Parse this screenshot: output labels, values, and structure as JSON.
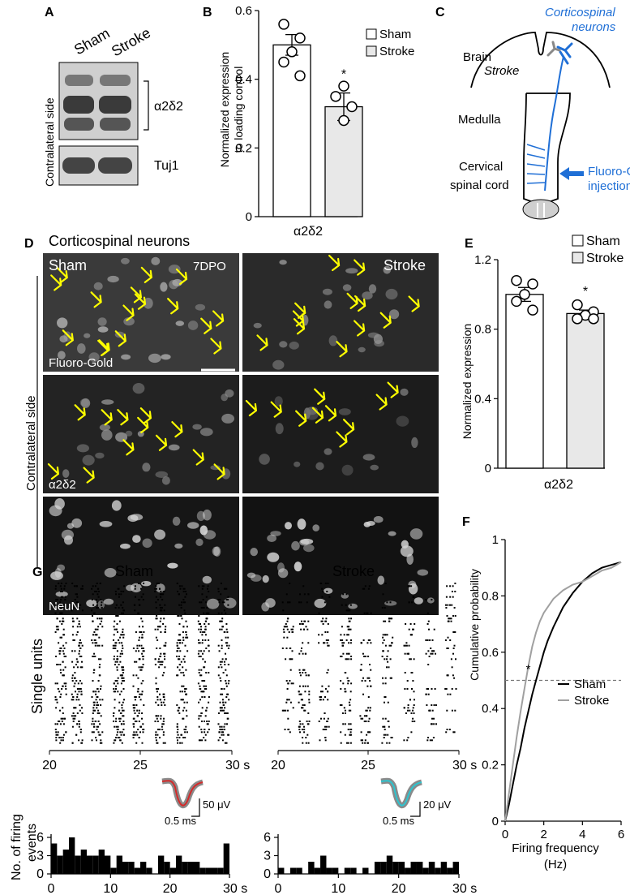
{
  "panels": {
    "A": "A",
    "B": "B",
    "C": "C",
    "D": "D",
    "E": "E",
    "F": "F",
    "G": "G"
  },
  "panelA": {
    "lanes": [
      "Sham",
      "Stroke"
    ],
    "side_label": "Contralateral side",
    "bands": [
      "α2δ2",
      "Tuj1"
    ]
  },
  "panelB": {
    "ylabel_line1": "Normalized expression",
    "ylabel_line2": "to loading control",
    "xlabel": "α2δ2",
    "yticks": [
      "0",
      "0.2",
      "0.4",
      "0.6"
    ],
    "legend": [
      "Sham",
      "Stroke"
    ],
    "sig": "*"
  },
  "panelC": {
    "title_line1": "Corticospinal",
    "title_line2": "neurons",
    "brain": "Brain",
    "stroke": "Stroke",
    "medulla": "Medulla",
    "cord_line1": "Cervical",
    "cord_line2": "spinal cord",
    "inj_line1": "Fluoro-Gold",
    "inj_line2": "injection",
    "colors": {
      "neuron": "#1f6fd6",
      "stroke_cell": "#888888"
    }
  },
  "panelD": {
    "title": "Corticospinal neurons",
    "side_label": "Contralateral side",
    "columns": [
      "Sham",
      "Stroke"
    ],
    "timepoint": "7DPO",
    "rows": [
      "Fluoro-Gold",
      "α2δ2",
      "NeuN"
    ],
    "arrow_color": "#ffff00"
  },
  "panelE": {
    "ylabel": "Normalized expression",
    "xlabel": "α2δ2",
    "yticks": [
      "0",
      "0.4",
      "0.8",
      "1.2"
    ],
    "legend": [
      "Sham",
      "Stroke"
    ],
    "sig": "*"
  },
  "panelF": {
    "ylabel": "Cumulative probability",
    "xlabel_line1": "Firing frequency",
    "xlabel_line2": "(Hz)",
    "yticks": [
      "0",
      "0.2",
      "0.4",
      "0.6",
      "0.8",
      "1"
    ],
    "xticks": [
      "0",
      "2",
      "4",
      "6"
    ],
    "legend": [
      "Sham",
      "Stroke"
    ],
    "sig": "*"
  },
  "panelG": {
    "titles": [
      "Sham",
      "Stroke"
    ],
    "raster_ylabel": "Single units",
    "hist_ylabel_line1": "No. of firing",
    "hist_ylabel_line2": "events",
    "raster_xticks": [
      "20",
      "25",
      "30 s"
    ],
    "hist_xticks": [
      "0",
      "10",
      "20",
      "30 s"
    ],
    "hist_yticks": [
      "0",
      "3",
      "6"
    ],
    "time_scale": "0.5 ms",
    "amp_scale_sham": "50 μV",
    "amp_scale_stroke": "20 μV",
    "colors": {
      "sham_wave": "#d42a2a",
      "stroke_wave": "#2ec4cf"
    }
  },
  "chart_data": [
    {
      "type": "bar",
      "panel": "B",
      "title": "",
      "categories": [
        "Sham",
        "Stroke"
      ],
      "values": [
        0.5,
        0.32
      ],
      "sem": [
        0.03,
        0.04
      ],
      "points": [
        [
          0.56,
          0.52,
          0.48,
          0.45,
          0.41
        ],
        [
          0.38,
          0.35,
          0.32,
          0.28
        ]
      ],
      "xlabel": "α2δ2",
      "ylabel": "Normalized expression to loading control",
      "ylim": [
        0,
        0.6
      ],
      "colors": [
        "#ffffff",
        "#e8e8e8"
      ]
    },
    {
      "type": "bar",
      "panel": "E",
      "title": "",
      "categories": [
        "Sham",
        "Stroke"
      ],
      "values": [
        1.0,
        0.89
      ],
      "sem": [
        0.04,
        0.02
      ],
      "points": [
        [
          1.08,
          1.06,
          1.0,
          0.96,
          0.91
        ],
        [
          0.94,
          0.9,
          0.88,
          0.86,
          0.86
        ]
      ],
      "xlabel": "α2δ2",
      "ylabel": "Normalized expression",
      "ylim": [
        0,
        1.2
      ],
      "colors": [
        "#ffffff",
        "#e8e8e8"
      ]
    },
    {
      "type": "line",
      "panel": "F",
      "title": "",
      "xlabel": "Firing frequency (Hz)",
      "ylabel": "Cumulative probability",
      "xlim": [
        0,
        6
      ],
      "ylim": [
        0,
        1
      ],
      "reference_line_y": 0.5,
      "series": [
        {
          "name": "Sham",
          "color": "#000000",
          "x": [
            0,
            0.2,
            0.4,
            0.6,
            0.8,
            1,
            1.2,
            1.4,
            1.6,
            1.8,
            2,
            2.2,
            2.5,
            3,
            3.5,
            4,
            4.5,
            5,
            5.5,
            6
          ],
          "y": [
            0,
            0.06,
            0.13,
            0.2,
            0.26,
            0.33,
            0.39,
            0.45,
            0.5,
            0.55,
            0.6,
            0.64,
            0.69,
            0.76,
            0.81,
            0.85,
            0.88,
            0.9,
            0.91,
            0.92
          ]
        },
        {
          "name": "Stroke",
          "color": "#a0a0a0",
          "x": [
            0,
            0.2,
            0.4,
            0.6,
            0.8,
            1,
            1.2,
            1.4,
            1.6,
            1.8,
            2,
            2.5,
            3,
            3.5,
            4,
            4.5,
            5,
            5.5,
            6
          ],
          "y": [
            0,
            0.1,
            0.2,
            0.3,
            0.39,
            0.47,
            0.55,
            0.62,
            0.67,
            0.71,
            0.74,
            0.79,
            0.82,
            0.84,
            0.85,
            0.87,
            0.89,
            0.9,
            0.92
          ]
        }
      ]
    },
    {
      "type": "bar",
      "panel": "G-hist-Sham",
      "title": "",
      "xlabel": "",
      "ylabel": "No. of firing events",
      "categories": [
        0,
        1,
        2,
        3,
        4,
        5,
        6,
        7,
        8,
        9,
        10,
        11,
        12,
        13,
        14,
        15,
        16,
        17,
        18,
        19,
        20,
        21,
        22,
        23,
        24,
        25,
        26,
        27,
        28,
        29
      ],
      "values": [
        5,
        3,
        4,
        6,
        3,
        4,
        3,
        3,
        4,
        3,
        1,
        3,
        2,
        2,
        1,
        2,
        1,
        0,
        3,
        2,
        1,
        3,
        2,
        2,
        2,
        1,
        1,
        1,
        1,
        5
      ],
      "ylim": [
        0,
        6
      ]
    },
    {
      "type": "bar",
      "panel": "G-hist-Stroke",
      "title": "",
      "xlabel": "",
      "ylabel": "",
      "categories": [
        0,
        1,
        2,
        3,
        4,
        5,
        6,
        7,
        8,
        9,
        10,
        11,
        12,
        13,
        14,
        15,
        16,
        17,
        18,
        19,
        20,
        21,
        22,
        23,
        24,
        25,
        26,
        27,
        28,
        29
      ],
      "values": [
        1,
        0,
        1,
        1,
        0,
        2,
        1,
        3,
        1,
        1,
        0,
        1,
        1,
        0,
        1,
        0,
        2,
        2,
        3,
        2,
        2,
        1,
        2,
        2,
        1,
        2,
        1,
        2,
        1,
        2
      ],
      "ylim": [
        0,
        6
      ]
    }
  ]
}
